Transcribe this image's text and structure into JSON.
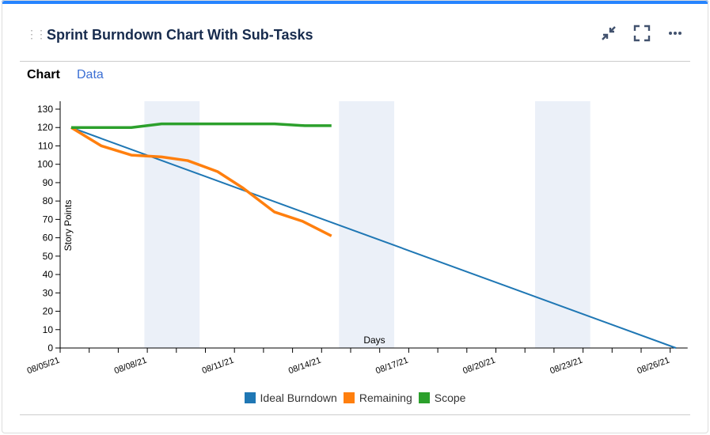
{
  "header": {
    "title": "Sprint Burndown Chart With Sub-Tasks"
  },
  "tabs": [
    {
      "label": "Chart"
    },
    {
      "label": "Data"
    }
  ],
  "chart_data": {
    "type": "line",
    "xlabel": "Days",
    "ylabel": "Story Points",
    "ylim": [
      0,
      130
    ],
    "yticks": [
      0,
      10,
      20,
      30,
      40,
      50,
      60,
      70,
      80,
      90,
      100,
      110,
      120,
      130
    ],
    "x_tick_labels": [
      "08/05/21",
      "08/08/21",
      "08/11/21",
      "08/14/21",
      "08/17/21",
      "08/20/21",
      "08/23/21",
      "08/26/21"
    ],
    "x_unit": "days since 08/05/21",
    "xlim": [
      0,
      21.6
    ],
    "non_working_periods": [
      [
        2.9,
        4.8
      ],
      [
        9.6,
        11.5
      ],
      [
        16.35,
        18.25
      ]
    ],
    "series": [
      {
        "name": "Ideal Burndown",
        "color": "#1f77b4",
        "points": [
          [
            0.38,
            120
          ],
          [
            21.2,
            0
          ]
        ]
      },
      {
        "name": "Remaining",
        "color": "#ff7f0e",
        "points": [
          [
            0.38,
            120
          ],
          [
            1.42,
            110
          ],
          [
            2.45,
            105
          ],
          [
            3.49,
            104
          ],
          [
            4.39,
            102
          ],
          [
            5.42,
            96
          ],
          [
            6.3,
            87
          ],
          [
            7.38,
            74
          ],
          [
            8.34,
            69
          ],
          [
            9.34,
            61
          ]
        ]
      },
      {
        "name": "Scope",
        "color": "#2ca02c",
        "points": [
          [
            0.38,
            120
          ],
          [
            2.45,
            120
          ],
          [
            3.49,
            122
          ],
          [
            7.38,
            122
          ],
          [
            8.42,
            121
          ],
          [
            9.34,
            121
          ]
        ]
      }
    ],
    "legend": "bottom"
  }
}
